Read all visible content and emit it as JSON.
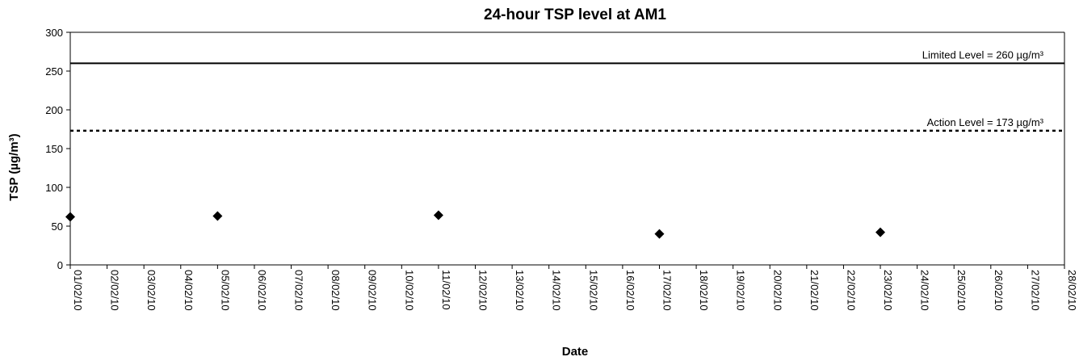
{
  "chart_data": {
    "type": "scatter",
    "title": "24-hour TSP level at AM1",
    "xlabel": "Date",
    "ylabel": "TSP (µg/m³)",
    "ylim": [
      0,
      300
    ],
    "yticks": [
      0,
      50,
      100,
      150,
      200,
      250,
      300
    ],
    "x_categories": [
      "01/02/10",
      "02/02/10",
      "03/02/10",
      "04/02/10",
      "05/02/10",
      "06/02/10",
      "07/02/10",
      "08/02/10",
      "09/02/10",
      "10/02/10",
      "11/02/10",
      "12/02/10",
      "13/02/10",
      "14/02/10",
      "15/02/10",
      "16/02/10",
      "17/02/10",
      "18/02/10",
      "19/02/10",
      "20/02/10",
      "21/02/10",
      "22/02/10",
      "23/02/10",
      "24/02/10",
      "25/02/10",
      "26/02/10",
      "27/02/10",
      "28/02/10"
    ],
    "series": [
      {
        "x": [
          "01/02/10",
          "05/02/10",
          "11/02/10",
          "17/02/10",
          "23/02/10"
        ],
        "y": [
          62,
          63,
          64,
          40,
          42
        ],
        "marker": "diamond",
        "color": "#000000"
      }
    ],
    "reference_lines": [
      {
        "label": "Limited Level = 260 µg/m³",
        "value": 260,
        "style": "solid"
      },
      {
        "label": "Action Level = 173 µg/m³",
        "value": 173,
        "style": "dotted"
      }
    ],
    "grid": false
  }
}
